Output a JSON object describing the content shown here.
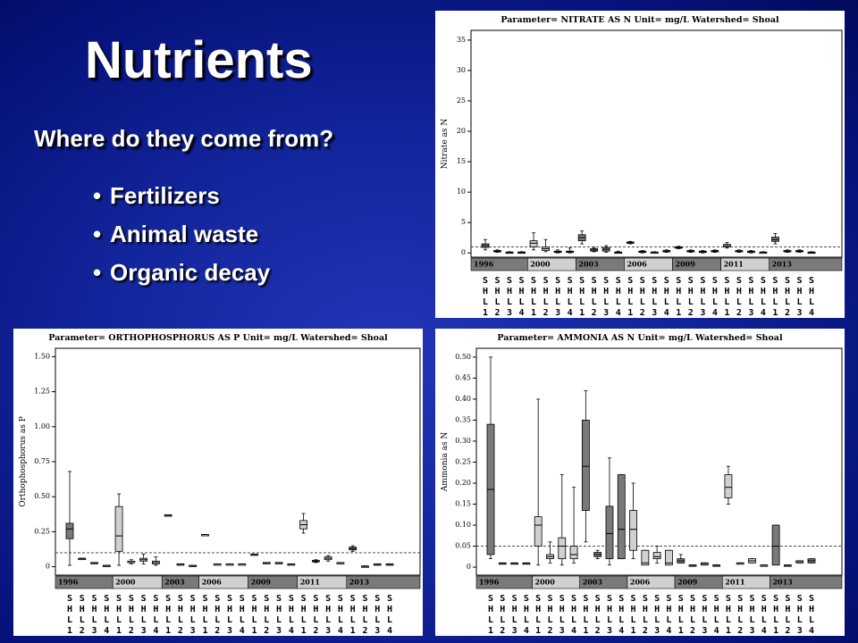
{
  "slide": {
    "title": "Nutrients",
    "subtitle": "Where do they come from?",
    "bullets": [
      "Fertilizers",
      "Animal waste",
      "Organic decay"
    ]
  },
  "chart_data": [
    {
      "type": "box",
      "title": "Parameter= NITRATE AS N  Unit= mg/L  Watershed= Shoal",
      "y_label": "Nitrate as N",
      "categories": [
        "SHL1",
        "SHL2",
        "SHL3",
        "SHL4",
        "SHL1",
        "SHL2",
        "SHL3",
        "SHL4",
        "SHL1",
        "SHL2",
        "SHL3",
        "SHL4",
        "SHL1",
        "SHL2",
        "SHL3",
        "SHL4",
        "SHL1",
        "SHL2",
        "SHL3",
        "SHL4",
        "SHL1",
        "SHL2",
        "SHL3",
        "SHL4",
        "SHL1",
        "SHL2",
        "SHL3",
        "SHL4"
      ],
      "groups": [
        {
          "label": "1996",
          "count": 4,
          "color": "#7a7a7a"
        },
        {
          "label": "2000",
          "count": 4,
          "color": "#d0d0d0"
        },
        {
          "label": "2003",
          "count": 4,
          "color": "#7a7a7a"
        },
        {
          "label": "2006",
          "count": 4,
          "color": "#d0d0d0"
        },
        {
          "label": "2009",
          "count": 4,
          "color": "#7a7a7a"
        },
        {
          "label": "2011",
          "count": 4,
          "color": "#d0d0d0"
        },
        {
          "label": "2013",
          "count": 4,
          "color": "#7a7a7a"
        }
      ],
      "boxes": [
        [
          0.5,
          0.9,
          1.2,
          1.5,
          2.2
        ],
        [
          0.1,
          0.2,
          0.3,
          0.4,
          0.5
        ],
        [
          0,
          0.05,
          0.1,
          0.15,
          0.2
        ],
        [
          0,
          0.05,
          0.1,
          0.15,
          0.2
        ],
        [
          0.5,
          1,
          1.6,
          2,
          3.3
        ],
        [
          0.2,
          0.4,
          0.7,
          1,
          2.2
        ],
        [
          0,
          0.1,
          0.2,
          0.3,
          0.5
        ],
        [
          0,
          0.1,
          0.2,
          0.3,
          0.8
        ],
        [
          1.5,
          2,
          2.5,
          3,
          3.6
        ],
        [
          0.2,
          0.3,
          0.5,
          0.7,
          0.9
        ],
        [
          0.1,
          0.3,
          0.6,
          0.9,
          1.2
        ],
        [
          0,
          0.05,
          0.1,
          0.15,
          0.3
        ],
        [
          1.5,
          1.6,
          1.7,
          1.8,
          1.9
        ],
        [
          0,
          0.1,
          0.2,
          0.3,
          0.4
        ],
        [
          0,
          0.05,
          0.1,
          0.15,
          0.2
        ],
        [
          0.1,
          0.2,
          0.3,
          0.4,
          0.5
        ],
        [
          0.7,
          0.8,
          0.9,
          1,
          1.1
        ],
        [
          0.1,
          0.2,
          0.3,
          0.4,
          0.5
        ],
        [
          0,
          0.1,
          0.2,
          0.3,
          0.4
        ],
        [
          0.1,
          0.2,
          0.3,
          0.4,
          0.5
        ],
        [
          0.8,
          1,
          1.2,
          1.4,
          1.7
        ],
        [
          0.1,
          0.2,
          0.3,
          0.4,
          0.5
        ],
        [
          0,
          0.1,
          0.2,
          0.3,
          0.4
        ],
        [
          0,
          0.05,
          0.1,
          0.15,
          0.2
        ],
        [
          1.5,
          1.9,
          2.2,
          2.6,
          3.2
        ],
        [
          0.1,
          0.2,
          0.3,
          0.4,
          0.5
        ],
        [
          0.1,
          0.2,
          0.3,
          0.4,
          0.5
        ],
        [
          0,
          0.05,
          0.1,
          0.15,
          0.2
        ]
      ],
      "reference_line": 1.0,
      "ylim": [
        -0.7,
        36.6
      ],
      "yticks": [
        0,
        5,
        10,
        15,
        20,
        25,
        30,
        35
      ]
    },
    {
      "type": "box",
      "title": "Parameter= ORTHOPHOSPHORUS AS P  Unit= mg/L  Watershed= Shoal",
      "y_label": "Orthophosphorus as P",
      "categories": [
        "SHL1",
        "SHL2",
        "SHL3",
        "SHL4",
        "SHL1",
        "SHL2",
        "SHL3",
        "SHL4",
        "SHL1",
        "SHL2",
        "SHL3",
        "SHL1",
        "SHL2",
        "SHL3",
        "SHL4",
        "SHL1",
        "SHL2",
        "SHL3",
        "SHL4",
        "SHL1",
        "SHL2",
        "SHL3",
        "SHL4",
        "SHL1",
        "SHL2",
        "SHL3",
        "SHL4"
      ],
      "groups": [
        {
          "label": "1996",
          "count": 4,
          "color": "#7a7a7a"
        },
        {
          "label": "2000",
          "count": 4,
          "color": "#d0d0d0"
        },
        {
          "label": "2003",
          "count": 3,
          "color": "#7a7a7a"
        },
        {
          "label": "2006",
          "count": 4,
          "color": "#d0d0d0"
        },
        {
          "label": "2009",
          "count": 4,
          "color": "#7a7a7a"
        },
        {
          "label": "2011",
          "count": 4,
          "color": "#d0d0d0"
        },
        {
          "label": "2013",
          "count": 4,
          "color": "#7a7a7a"
        }
      ],
      "boxes": [
        [
          0.01,
          0.2,
          0.27,
          0.31,
          0.68
        ],
        [
          0.06,
          0.06,
          0.06,
          0.06,
          0.06
        ],
        [
          0.03,
          0.03,
          0.03,
          0.03,
          0.03
        ],
        [
          0.01,
          0.01,
          0.01,
          0.01,
          0.01
        ],
        [
          0.01,
          0.11,
          0.22,
          0.43,
          0.52
        ],
        [
          0.02,
          0.03,
          0.03,
          0.04,
          0.05
        ],
        [
          0.02,
          0.04,
          0.05,
          0.06,
          0.09
        ],
        [
          0.01,
          0.02,
          0.03,
          0.04,
          0.07
        ],
        [
          0.37,
          0.37,
          0.37,
          0.37,
          0.37
        ],
        [
          0.02,
          0.02,
          0.02,
          0.02,
          0.02
        ],
        [
          0.01,
          0.01,
          0.01,
          0.01,
          0.01
        ],
        [
          0.23,
          0.23,
          0.23,
          0.23,
          0.23
        ],
        [
          0.02,
          0.02,
          0.02,
          0.02,
          0.02
        ],
        [
          0.02,
          0.02,
          0.02,
          0.02,
          0.02
        ],
        [
          0.02,
          0.02,
          0.02,
          0.02,
          0.02
        ],
        [
          0.09,
          0.09,
          0.09,
          0.09,
          0.09
        ],
        [
          0.03,
          0.03,
          0.03,
          0.03,
          0.03
        ],
        [
          0.03,
          0.03,
          0.03,
          0.03,
          0.03
        ],
        [
          0.02,
          0.02,
          0.02,
          0.02,
          0.02
        ],
        [
          0.24,
          0.27,
          0.3,
          0.33,
          0.38
        ],
        [
          0.03,
          0.035,
          0.04,
          0.045,
          0.05
        ],
        [
          0.04,
          0.05,
          0.06,
          0.07,
          0.08
        ],
        [
          0.02,
          0.02,
          0.03,
          0.03,
          0.03
        ],
        [
          0.11,
          0.12,
          0.13,
          0.14,
          0.15
        ],
        [
          0.005,
          0.005,
          0.005,
          0.005,
          0.005
        ],
        [
          0.01,
          0.015,
          0.02,
          0.02,
          0.02
        ],
        [
          0.01,
          0.015,
          0.02,
          0.02,
          0.02
        ]
      ],
      "reference_line": 0.1,
      "ylim": [
        -0.06,
        1.56
      ],
      "yticks": [
        0,
        0.25,
        {
          "value": 0.5,
          "label": "0.50"
        },
        0.75,
        {
          "value": 1.0,
          "label": "1.00"
        },
        1.25,
        {
          "value": 1.5,
          "label": "1.50"
        }
      ]
    },
    {
      "type": "box",
      "title": "Parameter= AMMONIA AS N  Unit= mg/L  Watershed= Shoal",
      "y_label": "Ammonia as N",
      "categories": [
        "SHL1",
        "SHL2",
        "SHL3",
        "SHL4",
        "SHL1",
        "SHL2",
        "SHL3",
        "SHL4",
        "SHL1",
        "SHL2",
        "SHL3",
        "SHL4",
        "SHL1",
        "SHL2",
        "SHL3",
        "SHL4",
        "SHL1",
        "SHL2",
        "SHL3",
        "SHL4",
        "SHL1",
        "SHL2",
        "SHL3",
        "SHL4",
        "SHL1",
        "SHL2",
        "SHL3",
        "SHL4"
      ],
      "groups": [
        {
          "label": "1996",
          "count": 4,
          "color": "#7a7a7a"
        },
        {
          "label": "2000",
          "count": 4,
          "color": "#d0d0d0"
        },
        {
          "label": "2003",
          "count": 4,
          "color": "#7a7a7a"
        },
        {
          "label": "2006",
          "count": 4,
          "color": "#d0d0d0"
        },
        {
          "label": "2009",
          "count": 4,
          "color": "#7a7a7a"
        },
        {
          "label": "2011",
          "count": 4,
          "color": "#d0d0d0"
        },
        {
          "label": "2013",
          "count": 4,
          "color": "#7a7a7a"
        }
      ],
      "boxes": [
        [
          0.02,
          0.03,
          0.185,
          0.34,
          0.5
        ],
        [
          0.01,
          0.01,
          0.01,
          0.01,
          0.01
        ],
        [
          0.01,
          0.01,
          0.01,
          0.01,
          0.01
        ],
        [
          0.01,
          0.01,
          0.01,
          0.01,
          0.01
        ],
        [
          0.005,
          0.05,
          0.1,
          0.12,
          0.4
        ],
        [
          0.01,
          0.02,
          0.025,
          0.03,
          0.06
        ],
        [
          0.005,
          0.02,
          0.05,
          0.07,
          0.22
        ],
        [
          0.01,
          0.02,
          0.03,
          0.05,
          0.19
        ],
        [
          0.06,
          0.135,
          0.24,
          0.35,
          0.42
        ],
        [
          0.02,
          0.025,
          0.03,
          0.035,
          0.04
        ],
        [
          0.005,
          0.02,
          0.08,
          0.145,
          0.26
        ],
        [
          0.02,
          0.02,
          0.09,
          0.22,
          0.22
        ],
        [
          0.02,
          0.04,
          0.09,
          0.135,
          0.2
        ],
        [
          0.005,
          0.005,
          0.01,
          0.04,
          0.04
        ],
        [
          0.01,
          0.02,
          0.025,
          0.035,
          0.05
        ],
        [
          0.005,
          0.005,
          0.01,
          0.04,
          0.04
        ],
        [
          0.01,
          0.01,
          0.015,
          0.02,
          0.03
        ],
        [
          0.005,
          0.005,
          0.005,
          0.005,
          0.005
        ],
        [
          0.005,
          0.005,
          0.01,
          0.01,
          0.01
        ],
        [
          0.005,
          0.005,
          0.005,
          0.005,
          0.005
        ],
        [
          0.15,
          0.165,
          0.19,
          0.22,
          0.24
        ],
        [
          0.01,
          0.01,
          0.01,
          0.01,
          0.01
        ],
        [
          0.01,
          0.01,
          0.015,
          0.02,
          0.02
        ],
        [
          0.005,
          0.005,
          0.005,
          0.005,
          0.005
        ],
        [
          0.005,
          0.005,
          0.05,
          0.1,
          0.1
        ],
        [
          0.005,
          0.005,
          0.005,
          0.005,
          0.005
        ],
        [
          0.01,
          0.01,
          0.015,
          0.015,
          0.015
        ],
        [
          0.01,
          0.01,
          0.015,
          0.02,
          0.02
        ]
      ],
      "reference_line": 0.05,
      "ylim": [
        -0.019,
        0.521
      ],
      "yticks": [
        0,
        0.05,
        {
          "value": 0.1,
          "label": "0.10"
        },
        0.15,
        {
          "value": 0.2,
          "label": "0.20"
        },
        0.25,
        {
          "value": 0.3,
          "label": "0.30"
        },
        0.35,
        {
          "value": 0.4,
          "label": "0.40"
        },
        0.45,
        {
          "value": 0.5,
          "label": "0.50"
        }
      ]
    }
  ]
}
